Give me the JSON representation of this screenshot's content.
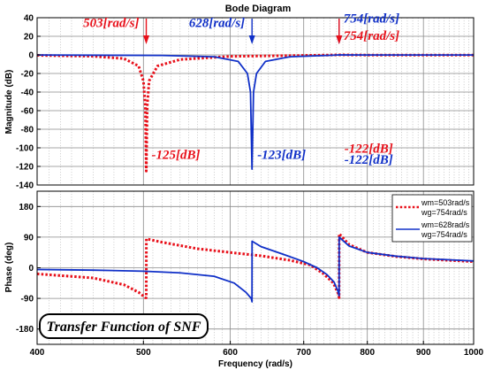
{
  "figure_title": "Bode Diagram",
  "colors": {
    "red": "#e8101a",
    "blue": "#1030c8",
    "grid": "#b8b8b8",
    "gridMajor": "#8a8a8a"
  },
  "textbox": "Transfer Function of SNF",
  "annotations": [
    {
      "text": "503[rad/s]",
      "color": "red",
      "x": 503,
      "panel": "mag",
      "y": 30,
      "anchor": "end",
      "dx": -8
    },
    {
      "text": "628[rad/s]",
      "color": "blue",
      "x": 628,
      "panel": "mag",
      "y": 30,
      "anchor": "end",
      "dx": -8
    },
    {
      "text": "754[rad/s]",
      "color": "blue",
      "x": 754,
      "panel": "mag",
      "y": 35,
      "anchor": "start",
      "dx": 5
    },
    {
      "text": "754[rad/s]",
      "color": "red",
      "x": 754,
      "panel": "mag",
      "y": 16,
      "anchor": "start",
      "dx": 5
    },
    {
      "text": "-125[dB]",
      "color": "red",
      "x": 503,
      "panel": "mag",
      "y": -112,
      "anchor": "start",
      "dx": 6
    },
    {
      "text": "-123[dB]",
      "color": "blue",
      "x": 628,
      "panel": "mag",
      "y": -112,
      "anchor": "start",
      "dx": 6
    },
    {
      "text": "-122[dB]",
      "color": "red",
      "x": 754,
      "panel": "mag",
      "y": -105,
      "anchor": "start",
      "dx": 6
    },
    {
      "text": "-122[dB]",
      "color": "blue",
      "x": 754,
      "panel": "mag",
      "y": -117,
      "anchor": "start",
      "dx": 6
    }
  ],
  "arrows": [
    {
      "x": 503,
      "color": "red"
    },
    {
      "x": 628,
      "color": "blue"
    },
    {
      "x": 754,
      "color": "blue"
    },
    {
      "x": 754,
      "color": "red"
    }
  ],
  "chart_data": [
    {
      "type": "line",
      "panel": "magnitude",
      "ylabel": "Magnitude (dB)",
      "xlim": [
        400,
        1000
      ],
      "ylim": [
        -140,
        40
      ],
      "yticks": [
        40,
        20,
        0,
        -20,
        -40,
        -60,
        -80,
        -100,
        -120,
        -140
      ],
      "x_scale": "log",
      "grid": true,
      "series": [
        {
          "color": "red",
          "style": "dotted",
          "notch": 503,
          "depth_db": -125,
          "wg": 754,
          "points": [
            [
              400,
              -0.5
            ],
            [
              450,
              -1.5
            ],
            [
              480,
              -4
            ],
            [
              495,
              -12
            ],
            [
              500,
              -28
            ],
            [
              502,
              -55
            ],
            [
              503,
              -125
            ],
            [
              504,
              -55
            ],
            [
              506,
              -28
            ],
            [
              515,
              -12
            ],
            [
              540,
              -5
            ],
            [
              600,
              -1.6
            ],
            [
              700,
              -0.6
            ],
            [
              754,
              0
            ],
            [
              800,
              -0.2
            ],
            [
              900,
              -0.2
            ],
            [
              1000,
              -0.2
            ]
          ]
        },
        {
          "color": "blue",
          "style": "solid",
          "notch": 628,
          "depth_db": -123,
          "wg": 754,
          "points": [
            [
              400,
              -0.1
            ],
            [
              520,
              -0.6
            ],
            [
              580,
              -2
            ],
            [
              610,
              -7
            ],
            [
              622,
              -20
            ],
            [
              626,
              -40
            ],
            [
              628,
              -123
            ],
            [
              630,
              -40
            ],
            [
              634,
              -20
            ],
            [
              646,
              -7
            ],
            [
              680,
              -2
            ],
            [
              740,
              -0.5
            ],
            [
              754,
              0
            ],
            [
              800,
              -0.1
            ],
            [
              1000,
              -0.1
            ]
          ]
        }
      ]
    },
    {
      "type": "line",
      "panel": "phase",
      "ylabel": "Phase (deg)",
      "xlabel": "Frequency (rad/s)",
      "xlim": [
        400,
        1000
      ],
      "ylim": [
        -225,
        225
      ],
      "yticks": [
        180,
        90,
        0,
        -90,
        -180
      ],
      "xticks": [
        400,
        500,
        600,
        700,
        800,
        900,
        1000
      ],
      "x_scale": "log",
      "grid": true,
      "legend": {
        "position": "top-right",
        "entries": [
          {
            "label_lines": [
              "wm=503rad/s",
              "wg=754rad/s"
            ],
            "color": "red",
            "style": "dotted"
          },
          {
            "label_lines": [
              "wm=628rad/s",
              "wg=754rad/s"
            ],
            "color": "blue",
            "style": "solid"
          }
        ]
      },
      "series": [
        {
          "color": "red",
          "style": "dotted",
          "points": [
            [
              400,
              -18
            ],
            [
              450,
              -30
            ],
            [
              480,
              -50
            ],
            [
              495,
              -72
            ],
            [
              502,
              -88
            ],
            [
              503,
              -88
            ],
            [
              503.1,
              85
            ],
            [
              520,
              75
            ],
            [
              560,
              56
            ],
            [
              600,
              45
            ],
            [
              640,
              35
            ],
            [
              680,
              22
            ],
            [
              710,
              8
            ],
            [
              730,
              -18
            ],
            [
              745,
              -45
            ],
            [
              753,
              -78
            ],
            [
              754,
              -88
            ],
            [
              754.1,
              100
            ],
            [
              770,
              68
            ],
            [
              800,
              45
            ],
            [
              850,
              33
            ],
            [
              900,
              26
            ],
            [
              1000,
              18
            ]
          ]
        },
        {
          "color": "blue",
          "style": "solid",
          "points": [
            [
              400,
              -5
            ],
            [
              450,
              -7
            ],
            [
              500,
              -10
            ],
            [
              540,
              -15
            ],
            [
              580,
              -25
            ],
            [
              605,
              -45
            ],
            [
              620,
              -72
            ],
            [
              627,
              -90
            ],
            [
              628,
              -100
            ],
            [
              628.1,
              78
            ],
            [
              640,
              62
            ],
            [
              670,
              40
            ],
            [
              700,
              18
            ],
            [
              720,
              0
            ],
            [
              735,
              -20
            ],
            [
              746,
              -42
            ],
            [
              752,
              -68
            ],
            [
              754,
              -82
            ],
            [
              754.1,
              90
            ],
            [
              770,
              64
            ],
            [
              800,
              45
            ],
            [
              850,
              34
            ],
            [
              900,
              27
            ],
            [
              1000,
              20
            ]
          ]
        }
      ]
    }
  ]
}
